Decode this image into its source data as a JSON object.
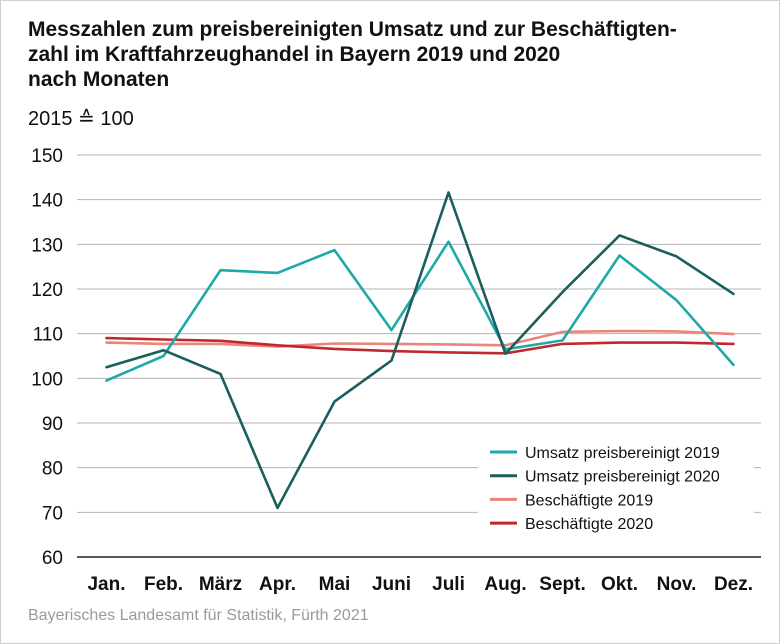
{
  "title_lines": [
    "Messzahlen zum preisbereinigten Umsatz und zur Beschäftigten-",
    "zahl im Kraftfahrzeughandel in Bayern 2019 und 2020",
    "nach Monaten"
  ],
  "subtitle": "2015 ≙ 100",
  "source": "Bayerisches Landesamt für Statistik, Fürth 2021",
  "chart_data": {
    "type": "line",
    "categories": [
      "Jan.",
      "Feb.",
      "März",
      "Apr.",
      "Mai",
      "Juni",
      "Juli",
      "Aug.",
      "Sept.",
      "Okt.",
      "Nov.",
      "Dez."
    ],
    "ylim": [
      60,
      150
    ],
    "yticks": [
      60,
      70,
      80,
      90,
      100,
      110,
      120,
      130,
      140,
      150
    ],
    "grid": true,
    "legend_position": "bottom-right",
    "series": [
      {
        "name": "Umsatz preisbereinigt 2019",
        "color": "#1fa9a6",
        "values": [
          99.5,
          105,
          124.2,
          123.6,
          128.7,
          110.8,
          130.6,
          106.5,
          108.5,
          127.5,
          117.5,
          103
        ]
      },
      {
        "name": "Umsatz preisbereinigt 2020",
        "color": "#1a5e5e",
        "values": [
          102.5,
          106.3,
          101,
          71,
          94.8,
          104,
          141.6,
          105.5,
          119.3,
          132,
          127.3,
          118.9
        ]
      },
      {
        "name": "Beschäftigte 2019",
        "color": "#e9857b",
        "values": [
          108,
          107.7,
          107.7,
          107.1,
          107.8,
          107.7,
          107.6,
          107.4,
          110.4,
          110.6,
          110.5,
          109.9
        ]
      },
      {
        "name": "Beschäftigte 2020",
        "color": "#c0282d",
        "values": [
          109,
          108.7,
          108.4,
          107.4,
          106.6,
          106.1,
          105.8,
          105.6,
          107.7,
          108,
          108,
          107.7
        ]
      }
    ]
  }
}
